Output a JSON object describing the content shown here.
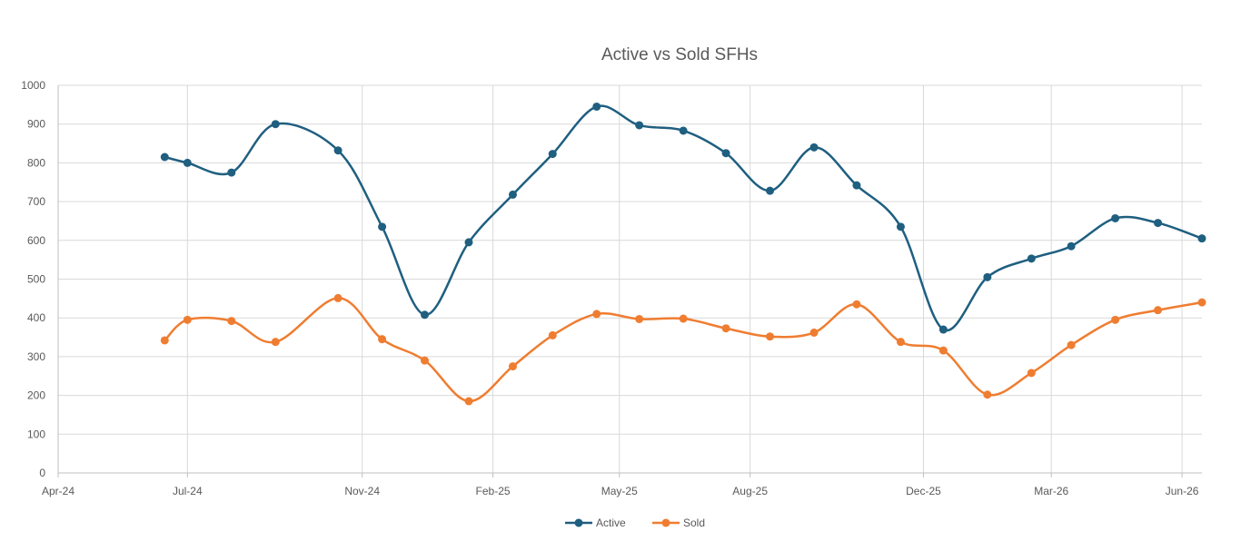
{
  "chart_data": {
    "type": "line",
    "title": "Active vs Sold SFHs",
    "xlabel": "",
    "ylabel": "",
    "x_axis": {
      "type": "date",
      "range": [
        "2024-04-01",
        "2026-06-15"
      ],
      "tick_dates": [
        "2024-04-01",
        "2024-07-01",
        "2024-11-01",
        "2025-02-01",
        "2025-05-01",
        "2025-08-01",
        "2025-12-01",
        "2026-03-01",
        "2026-06-01"
      ],
      "tick_labels": [
        "Apr-24",
        "Jul-24",
        "Nov-24",
        "Feb-25",
        "May-25",
        "Aug-25",
        "Dec-25",
        "Mar-26",
        "Jun-26"
      ]
    },
    "y_axis": {
      "range": [
        0,
        1000
      ],
      "ticks": [
        0,
        100,
        200,
        300,
        400,
        500,
        600,
        700,
        800,
        900,
        1000
      ]
    },
    "grid": true,
    "legend_position": "bottom",
    "x": [
      "2024-06-15",
      "2024-07-01",
      "2024-08-01",
      "2024-09-01",
      "2024-10-15",
      "2024-11-15",
      "2024-12-15",
      "2025-01-15",
      "2025-02-15",
      "2025-03-15",
      "2025-04-15",
      "2025-05-15",
      "2025-06-15",
      "2025-07-15",
      "2025-08-15",
      "2025-09-15",
      "2025-10-15",
      "2025-11-15",
      "2025-12-15",
      "2026-01-15",
      "2026-02-15",
      "2026-03-15",
      "2026-04-15",
      "2026-05-15",
      "2026-06-15"
    ],
    "series": [
      {
        "name": "Active",
        "color": "#1f5f80",
        "values": [
          815,
          800,
          775,
          900,
          832,
          635,
          408,
          595,
          718,
          823,
          945,
          897,
          883,
          825,
          728,
          840,
          742,
          635,
          370,
          505,
          553,
          585,
          657,
          645,
          605
        ]
      },
      {
        "name": "Sold",
        "color": "#ef7d31",
        "values": [
          342,
          395,
          392,
          338,
          451,
          345,
          290,
          185,
          275,
          355,
          410,
          397,
          398,
          373,
          352,
          362,
          435,
          338,
          316,
          202,
          258,
          330,
          395,
          420,
          440
        ]
      }
    ]
  }
}
